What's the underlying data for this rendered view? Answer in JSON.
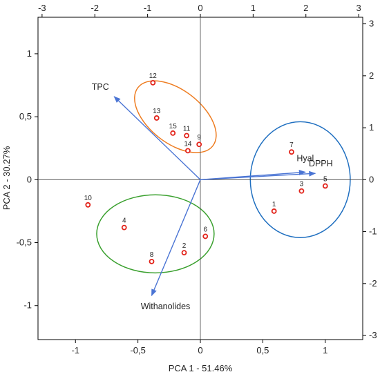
{
  "chart_data": {
    "type": "scatter",
    "subtype": "pca-biplot",
    "xlabel": "PCA 1 - 51.46%",
    "ylabel": "PCA 2 - 30.27%",
    "xlim": [
      -1.3,
      1.3
    ],
    "ylim": [
      -1.27,
      1.29
    ],
    "x_ticks": [
      {
        "value": -1,
        "label": "-1"
      },
      {
        "value": -0.5,
        "label": "-0,5"
      },
      {
        "value": 0,
        "label": "0"
      },
      {
        "value": 0.5,
        "label": "0,5"
      },
      {
        "value": 1,
        "label": "1"
      }
    ],
    "y_ticks": [
      {
        "value": 1,
        "label": "1"
      },
      {
        "value": 0.5,
        "label": "0,5"
      },
      {
        "value": 0,
        "label": "0"
      },
      {
        "value": -0.5,
        "label": "-0,5"
      },
      {
        "value": -1,
        "label": "-1"
      }
    ],
    "secondary_x_ticks": [
      {
        "value": -3,
        "label": "-3"
      },
      {
        "value": -2,
        "label": "-2"
      },
      {
        "value": -1,
        "label": "-1"
      },
      {
        "value": 0,
        "label": "0"
      },
      {
        "value": 1,
        "label": "1"
      },
      {
        "value": 2,
        "label": "2"
      },
      {
        "value": 3,
        "label": "3"
      }
    ],
    "secondary_y_ticks": [
      {
        "value": 3,
        "label": "3"
      },
      {
        "value": 2,
        "label": "2"
      },
      {
        "value": 1,
        "label": "1"
      },
      {
        "value": 0,
        "label": "0"
      },
      {
        "value": -1,
        "label": "-1"
      },
      {
        "value": -2,
        "label": "-2"
      },
      {
        "value": -3,
        "label": "-3"
      }
    ],
    "secondary_x_scale": 0.4225,
    "secondary_y_scale": 0.4125,
    "points": [
      {
        "label": "1",
        "x": 0.59,
        "y": -0.25
      },
      {
        "label": "2",
        "x": -0.13,
        "y": -0.58
      },
      {
        "label": "3",
        "x": 0.81,
        "y": -0.09
      },
      {
        "label": "4",
        "x": -0.61,
        "y": -0.38
      },
      {
        "label": "5",
        "x": 1.0,
        "y": -0.05
      },
      {
        "label": "6",
        "x": 0.04,
        "y": -0.45
      },
      {
        "label": "7",
        "x": 0.73,
        "y": 0.22
      },
      {
        "label": "8",
        "x": -0.39,
        "y": -0.65
      },
      {
        "label": "9",
        "x": -0.01,
        "y": 0.28
      },
      {
        "label": "10",
        "x": -0.9,
        "y": -0.2
      },
      {
        "label": "11",
        "x": -0.11,
        "y": 0.35
      },
      {
        "label": "12",
        "x": -0.38,
        "y": 0.77
      },
      {
        "label": "13",
        "x": -0.35,
        "y": 0.49
      },
      {
        "label": "14",
        "x": -0.1,
        "y": 0.23
      },
      {
        "label": "15",
        "x": -0.22,
        "y": 0.37
      }
    ],
    "loadings": [
      {
        "label": "TPC",
        "x": -0.69,
        "y": 0.66
      },
      {
        "label": "Withanolides",
        "x": -0.39,
        "y": -0.92
      },
      {
        "label": "Hyal",
        "x": 0.84,
        "y": 0.06
      },
      {
        "label": "DPPH",
        "x": 0.92,
        "y": 0.05
      }
    ],
    "clusters": [
      {
        "color": "#ee7d22",
        "cx": -0.2,
        "cy": 0.5,
        "rx": 0.38,
        "ry": 0.21,
        "angle_deg": 38
      },
      {
        "color": "#3aa02e",
        "cx": -0.36,
        "cy": -0.43,
        "rx": 0.47,
        "ry": 0.31,
        "angle_deg": 0
      },
      {
        "color": "#1f6fc0",
        "cx": 0.8,
        "cy": 0.0,
        "rx": 0.4,
        "ry": 0.46,
        "angle_deg": 0
      }
    ],
    "colors": {
      "points": "#e2231a",
      "loadings": "#4a74d4",
      "axes": "#000000"
    },
    "grid": false,
    "legend": "none"
  }
}
